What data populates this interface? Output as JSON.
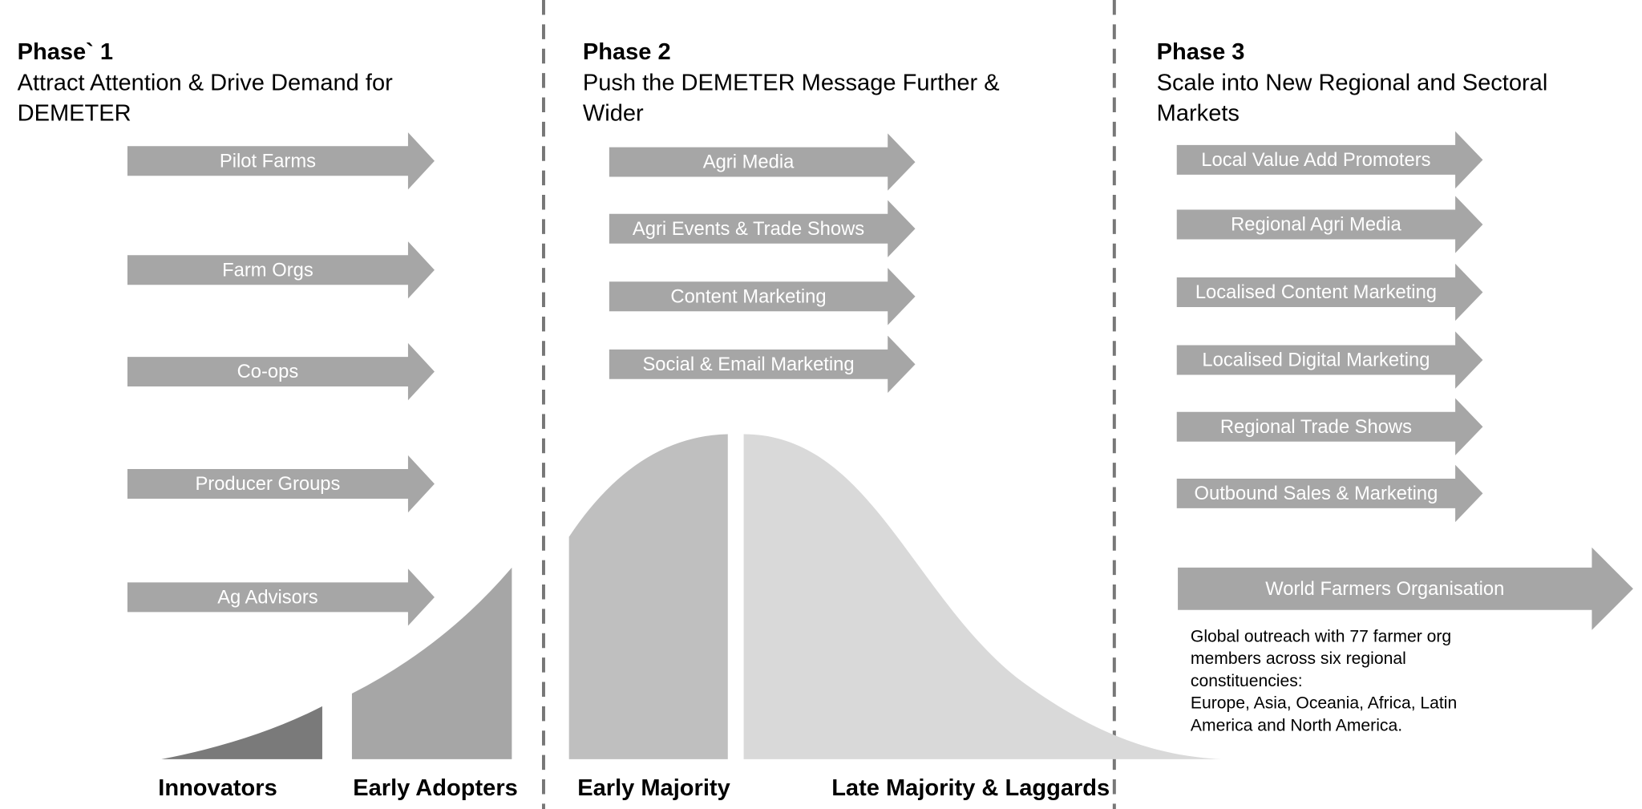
{
  "phases": [
    {
      "title": "Phase` 1",
      "subtitle": [
        "Attract Attention & Drive Demand for",
        "DEMETER"
      ],
      "arrows": [
        "Pilot Farms",
        "Farm Orgs",
        "Co-ops",
        "Producer Groups",
        "Ag Advisors"
      ]
    },
    {
      "title": "Phase 2",
      "subtitle": [
        "Push the DEMETER Message Further &",
        "Wider"
      ],
      "arrows": [
        "Agri Media",
        "Agri Events & Trade Shows",
        "Content Marketing",
        "Social & Email Marketing"
      ]
    },
    {
      "title": "Phase 3",
      "subtitle": [
        "Scale into New Regional and Sectoral",
        "Markets"
      ],
      "arrows": [
        "Local Value Add Promoters",
        "Regional Agri Media",
        "Localised Content Marketing",
        "Localised Digital Marketing",
        "Regional Trade Shows",
        "Outbound Sales & Marketing"
      ]
    }
  ],
  "highlight": {
    "label": "World Farmers Organisation",
    "note": [
      "Global outreach with 77 farmer org",
      "members across six regional",
      "constituencies:",
      "Europe, Asia, Oceania, Africa, Latin",
      "America and North America."
    ]
  },
  "segments": [
    "Innovators",
    "Early Adopters",
    "Early Majority",
    "Late Majority & Laggards"
  ]
}
